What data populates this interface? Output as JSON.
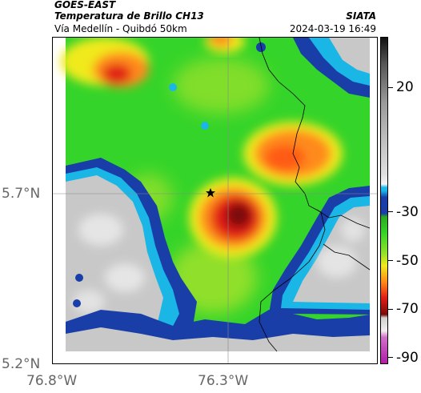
{
  "header": {
    "satellite": "GOES-EAST",
    "product": "Temperatura de Brillo CH13",
    "route": "Vía Medellín - Quibdó 50km",
    "organization": "SIATA",
    "timestamp": "2024-03-19 16:49"
  },
  "axes": {
    "lat_ticks": [
      "5.7°N",
      "5.2°N"
    ],
    "lon_ticks": [
      "76.8°W",
      "76.3°W"
    ]
  },
  "colorbar": {
    "labels": [
      "20",
      "-30",
      "-50",
      "-70",
      "-90"
    ],
    "units_hint": "brightness temperature (°C)"
  },
  "marker": {
    "icon": "star-icon"
  },
  "colors": {
    "gray": "#c8c8c8",
    "blue": "#1a3ea8",
    "cyan": "#19b6e6",
    "green": "#35d42a",
    "yellow": "#f0ea1c",
    "orange": "#ff8a1a",
    "red": "#e01c16",
    "dark_red": "#7a0a0a",
    "magenta": "#b01ea8"
  }
}
